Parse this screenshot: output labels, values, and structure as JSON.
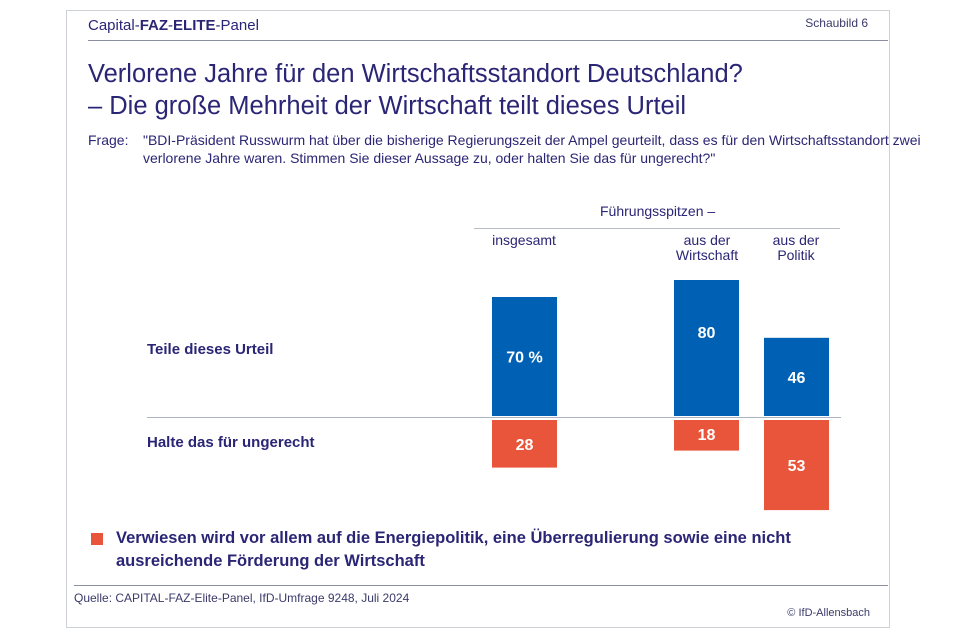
{
  "header": {
    "brand_part1": "Capital-",
    "brand_part2": "FAZ",
    "brand_part3": "-",
    "brand_part4": "ELITE",
    "brand_part5": "-Panel",
    "figure_number": "Schaubild 6"
  },
  "question": {
    "label": "Frage:",
    "text": "\"BDI-Präsident Russwurm hat über die bisherige Regierungszeit der Ampel geurteilt, dass es für den Wirtschaftsstandort zwei verlorene Jahre waren. Stimmen Sie dieser Aussage zu, oder halten Sie das für ungerecht?\""
  },
  "note": {
    "text": "Verwiesen wird vor allem auf die Energiepolitik, eine Überregulierung sowie eine nicht ausreichende Förderung der Wirtschaft"
  },
  "footer": {
    "source": "Quelle: CAPITAL-FAZ-Elite-Panel, IfD-Umfrage 9248, Juli 2024",
    "copyright": "© IfD-Allensbach"
  },
  "colors": {
    "agree": "#0061b4",
    "disagree": "#e9553a",
    "text": "#2a2575"
  },
  "chart_data": {
    "type": "bar",
    "title": "Verlorene Jahre für den Wirtschaftsstandort Deutschland?",
    "subtitle": "– Die große Mehrheit der Wirtschaft teilt dieses Urteil",
    "group_label": "Führungsspitzen –",
    "categories": [
      "insgesamt",
      "aus der Wirtschaft",
      "aus der Politik"
    ],
    "category_lines": [
      [
        "insgesamt"
      ],
      [
        "aus der",
        "Wirtschaft"
      ],
      [
        "aus der",
        "Politik"
      ]
    ],
    "unit": "%",
    "series": [
      {
        "name": "Teile dieses Urteil",
        "direction": "up",
        "values": [
          70,
          80,
          46
        ],
        "labels": [
          "70 %",
          "80",
          "46"
        ]
      },
      {
        "name": "Halte das für ungerecht",
        "direction": "down",
        "values": [
          28,
          18,
          53
        ],
        "labels": [
          "28",
          "18",
          "53"
        ]
      }
    ],
    "ylim": [
      -100,
      100
    ],
    "grid": false,
    "legend": "row-labels-left"
  }
}
